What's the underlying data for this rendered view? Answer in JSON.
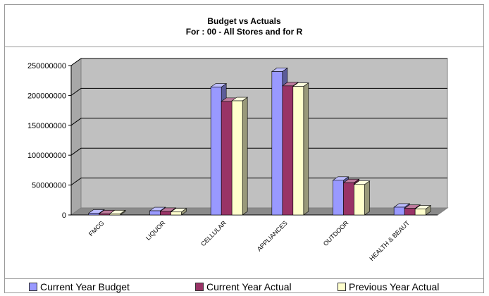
{
  "chart_data": {
    "type": "bar",
    "title": "Budget vs Actuals",
    "subtitle": "For : 00 - All Stores and for R",
    "categories": [
      "FMCG",
      "LIQUOR",
      "CELLULAR",
      "APPLIANCES",
      "OUTDOOR",
      "HEALTH & BEAUT"
    ],
    "series": [
      {
        "name": "Current Year Budget",
        "color": "#9999ff",
        "values": [
          3000000,
          7000000,
          214000000,
          240000000,
          58000000,
          13000000
        ]
      },
      {
        "name": "Current Year Actual",
        "color": "#993366",
        "values": [
          2000000,
          6000000,
          190000000,
          216000000,
          54000000,
          11000000
        ]
      },
      {
        "name": "Previous Year Actual",
        "color": "#ffffcc",
        "values": [
          2000000,
          5000000,
          191000000,
          215000000,
          51000000,
          10000000
        ]
      }
    ],
    "yticks": [
      "250000000",
      "200000000",
      "150000000",
      "100000000",
      "50000000",
      "0"
    ],
    "ylim": [
      0,
      250000000
    ],
    "grid": true,
    "three_d": true,
    "legend_position": "bottom",
    "plot_wall_color": "#c0c0c0"
  }
}
